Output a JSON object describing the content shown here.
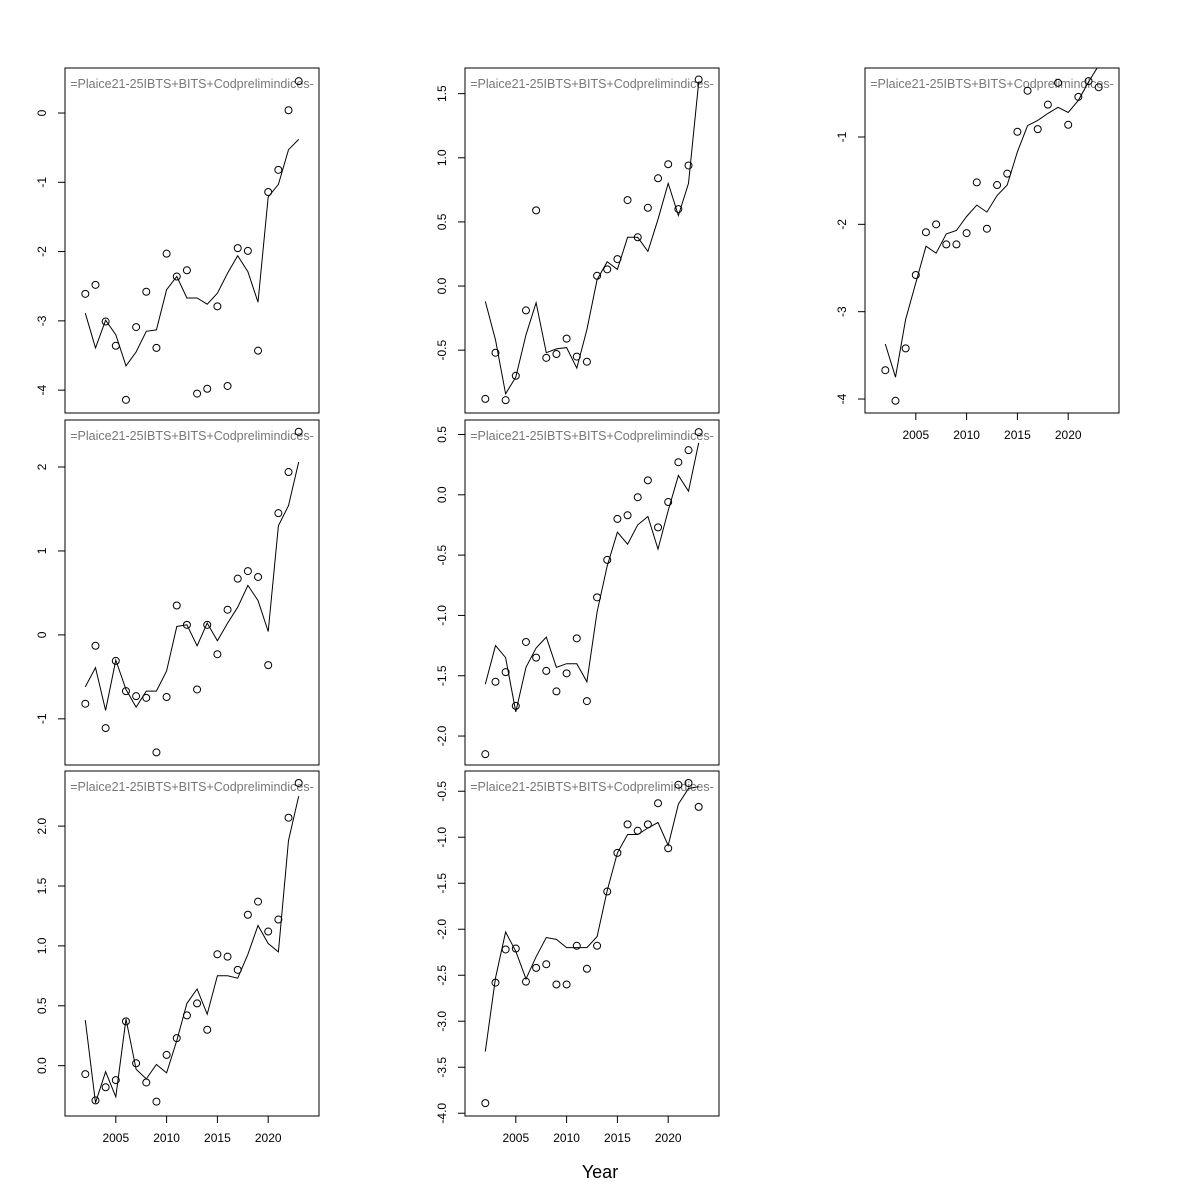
{
  "x_label": "Year",
  "chart_data": [
    {
      "type": "line",
      "title": "=Plaice21-25IBTS+BITS+Codprelimindices-",
      "x": [
        2002,
        2003,
        2004,
        2005,
        2006,
        2007,
        2008,
        2009,
        2010,
        2011,
        2012,
        2013,
        2014,
        2015,
        2016,
        2017,
        2018,
        2019,
        2020,
        2021,
        2022,
        2023
      ],
      "series": [
        {
          "mode": "points",
          "color": "#000000",
          "values": [
            -2.61,
            -2.48,
            -3.01,
            -3.36,
            -4.14,
            -3.09,
            -2.58,
            -3.39,
            -2.03,
            -2.36,
            -2.27,
            -4.05,
            -3.98,
            -2.79,
            -3.94,
            -1.95,
            -1.99,
            -3.43,
            -1.14,
            -0.82,
            0.04,
            0.46
          ]
        },
        {
          "mode": "line",
          "color": "#000000",
          "values": [
            -2.89,
            -3.39,
            -2.99,
            -3.2,
            -3.65,
            -3.45,
            -3.15,
            -3.13,
            -2.55,
            -2.36,
            -2.67,
            -2.67,
            -2.76,
            -2.6,
            -2.31,
            -2.06,
            -2.29,
            -2.73,
            -1.21,
            -1.03,
            -0.53,
            -0.38
          ]
        }
      ],
      "xlim": [
        2000,
        2025
      ],
      "ylim": [
        -4.33,
        0.65
      ],
      "yticks": [
        0,
        -1,
        -2,
        -3,
        -4
      ]
    },
    {
      "type": "line",
      "title": "=Plaice21-25IBTS+BITS+Codprelimindices-",
      "x": [
        2002,
        2003,
        2004,
        2005,
        2006,
        2007,
        2008,
        2009,
        2010,
        2011,
        2012,
        2013,
        2014,
        2015,
        2016,
        2017,
        2018,
        2019,
        2020,
        2021,
        2022,
        2023
      ],
      "series": [
        {
          "mode": "points",
          "color": "#000000",
          "values": [
            -0.82,
            -0.13,
            -1.11,
            -0.31,
            -0.67,
            -0.73,
            -0.75,
            -1.4,
            -0.74,
            0.35,
            0.12,
            -0.65,
            0.12,
            -0.23,
            0.3,
            0.67,
            0.76,
            0.69,
            -0.36,
            1.45,
            1.94,
            2.42
          ]
        },
        {
          "mode": "line",
          "color": "#000000",
          "values": [
            -0.62,
            -0.39,
            -0.9,
            -0.3,
            -0.65,
            -0.86,
            -0.67,
            -0.67,
            -0.43,
            0.1,
            0.12,
            -0.13,
            0.14,
            -0.07,
            0.14,
            0.33,
            0.59,
            0.41,
            0.04,
            1.3,
            1.54,
            2.06
          ]
        }
      ],
      "xlim": [
        2000,
        2025
      ],
      "ylim": [
        -1.55,
        2.56
      ],
      "yticks": [
        2,
        1,
        0,
        -1
      ]
    },
    {
      "type": "line",
      "title": "=Plaice21-25IBTS+BITS+Codprelimindices-",
      "x": [
        2002,
        2003,
        2004,
        2005,
        2006,
        2007,
        2008,
        2009,
        2010,
        2011,
        2012,
        2013,
        2014,
        2015,
        2016,
        2017,
        2018,
        2019,
        2020,
        2021,
        2022,
        2023
      ],
      "series": [
        {
          "mode": "points",
          "color": "#000000",
          "values": [
            -0.07,
            -0.29,
            -0.18,
            -0.12,
            0.37,
            0.02,
            -0.14,
            -0.3,
            0.09,
            0.23,
            0.42,
            0.52,
            0.3,
            0.93,
            0.91,
            0.8,
            1.26,
            1.37,
            1.12,
            1.22,
            2.07,
            2.36
          ]
        },
        {
          "mode": "line",
          "color": "#000000",
          "values": [
            0.38,
            -0.31,
            -0.05,
            -0.26,
            0.39,
            -0.03,
            -0.11,
            0.01,
            -0.06,
            0.21,
            0.52,
            0.64,
            0.43,
            0.75,
            0.75,
            0.73,
            0.93,
            1.17,
            1.02,
            0.95,
            1.88,
            2.25
          ]
        }
      ],
      "xlim": [
        2000,
        2025
      ],
      "ylim": [
        -0.42,
        2.46
      ],
      "yticks": [
        {
          "value": 2,
          "label": "2.0"
        },
        1.5,
        {
          "value": 1,
          "label": "1.0"
        },
        0.5,
        {
          "value": 0,
          "label": "0.0"
        }
      ],
      "xticks": [
        2005,
        2010,
        2015,
        2020
      ]
    },
    {
      "type": "line",
      "title": "=Plaice21-25IBTS+BITS+Codprelimindices-",
      "x": [
        2002,
        2003,
        2004,
        2005,
        2006,
        2007,
        2008,
        2009,
        2010,
        2011,
        2012,
        2013,
        2014,
        2015,
        2016,
        2017,
        2018,
        2019,
        2020,
        2021,
        2022,
        2023
      ],
      "series": [
        {
          "mode": "points",
          "color": "#000000",
          "values": [
            -0.88,
            -0.52,
            -0.89,
            -0.7,
            -0.19,
            0.59,
            -0.56,
            -0.53,
            -0.41,
            -0.55,
            -0.59,
            0.08,
            0.13,
            0.21,
            0.67,
            0.38,
            0.61,
            0.84,
            0.95,
            0.6,
            0.94,
            1.61
          ]
        },
        {
          "mode": "line",
          "color": "#000000",
          "values": [
            -0.12,
            -0.42,
            -0.84,
            -0.71,
            -0.38,
            -0.13,
            -0.52,
            -0.49,
            -0.48,
            -0.64,
            -0.34,
            0.05,
            0.19,
            0.13,
            0.38,
            0.38,
            0.27,
            0.52,
            0.8,
            0.55,
            0.8,
            1.59
          ]
        }
      ],
      "xlim": [
        2000,
        2025
      ],
      "ylim": [
        -0.99,
        1.7
      ],
      "yticks": [
        1.5,
        {
          "value": 1,
          "label": "1.0"
        },
        0.5,
        {
          "value": 0,
          "label": "0.0"
        },
        -0.5
      ]
    },
    {
      "type": "line",
      "title": "=Plaice21-25IBTS+BITS+Codprelimindices-",
      "x": [
        2002,
        2003,
        2004,
        2005,
        2006,
        2007,
        2008,
        2009,
        2010,
        2011,
        2012,
        2013,
        2014,
        2015,
        2016,
        2017,
        2018,
        2019,
        2020,
        2021,
        2022,
        2023
      ],
      "series": [
        {
          "mode": "points",
          "color": "#000000",
          "values": [
            -2.15,
            -1.55,
            -1.47,
            -1.75,
            -1.22,
            -1.35,
            -1.46,
            -1.63,
            -1.48,
            -1.19,
            -1.71,
            -0.85,
            -0.54,
            -0.2,
            -0.17,
            -0.02,
            0.12,
            -0.27,
            -0.06,
            0.27,
            0.37,
            0.52
          ]
        },
        {
          "mode": "line",
          "color": "#000000",
          "values": [
            -1.57,
            -1.25,
            -1.35,
            -1.8,
            -1.43,
            -1.27,
            -1.18,
            -1.43,
            -1.4,
            -1.4,
            -1.55,
            -0.97,
            -0.59,
            -0.31,
            -0.41,
            -0.25,
            -0.18,
            -0.45,
            -0.13,
            0.16,
            0.03,
            0.43
          ]
        }
      ],
      "xlim": [
        2000,
        2025
      ],
      "ylim": [
        -2.24,
        0.62
      ],
      "yticks": [
        0.5,
        {
          "value": 0,
          "label": "0.0"
        },
        -0.5,
        {
          "value": -1,
          "label": "-1.0"
        },
        -1.5,
        {
          "value": -2,
          "label": "-2.0"
        }
      ]
    },
    {
      "type": "line",
      "title": "=Plaice21-25IBTS+BITS+Codprelimindices-",
      "x": [
        2002,
        2003,
        2004,
        2005,
        2006,
        2007,
        2008,
        2009,
        2010,
        2011,
        2012,
        2013,
        2014,
        2015,
        2016,
        2017,
        2018,
        2019,
        2020,
        2021,
        2022,
        2023
      ],
      "series": [
        {
          "mode": "points",
          "color": "#000000",
          "values": [
            -3.89,
            -2.58,
            -2.22,
            -2.21,
            -2.57,
            -2.42,
            -2.38,
            -2.6,
            -2.6,
            -2.18,
            -2.43,
            -2.18,
            -1.59,
            -1.17,
            -0.86,
            -0.93,
            -0.86,
            -0.63,
            -1.12,
            -0.43,
            -0.41,
            -0.67
          ]
        },
        {
          "mode": "line",
          "color": "#000000",
          "values": [
            -3.33,
            -2.53,
            -2.03,
            -2.24,
            -2.54,
            -2.3,
            -2.09,
            -2.11,
            -2.2,
            -2.2,
            -2.2,
            -2.08,
            -1.58,
            -1.17,
            -0.97,
            -0.97,
            -0.9,
            -0.84,
            -1.09,
            -0.64,
            -0.47,
            -0.45
          ]
        }
      ],
      "xlim": [
        2000,
        2025
      ],
      "ylim": [
        -4.03,
        -0.28
      ],
      "yticks": [
        -0.5,
        {
          "value": -1,
          "label": "-1.0"
        },
        -1.5,
        {
          "value": -2,
          "label": "-2.0"
        },
        -2.5,
        {
          "value": -3,
          "label": "-3.0"
        },
        -3.5,
        {
          "value": -4,
          "label": "-4.0"
        }
      ],
      "xticks": [
        2005,
        2010,
        2015,
        2020
      ]
    },
    {
      "type": "line",
      "title": "=Plaice21-25IBTS+BITS+Codprelimindices-",
      "x": [
        2002,
        2003,
        2004,
        2005,
        2006,
        2007,
        2008,
        2009,
        2010,
        2011,
        2012,
        2013,
        2014,
        2015,
        2016,
        2017,
        2018,
        2019,
        2020,
        2021,
        2022,
        2023
      ],
      "series": [
        {
          "mode": "points",
          "color": "#000000",
          "values": [
            -3.67,
            -4.02,
            -3.42,
            -2.58,
            -2.09,
            -2.0,
            -2.23,
            -2.23,
            -2.1,
            -1.52,
            -2.05,
            -1.55,
            -1.42,
            -0.94,
            -0.47,
            -0.91,
            -0.63,
            -0.38,
            -0.86,
            -0.54,
            -0.36,
            -0.43
          ]
        },
        {
          "mode": "line",
          "color": "#000000",
          "values": [
            -3.37,
            -3.75,
            -3.09,
            -2.67,
            -2.25,
            -2.33,
            -2.11,
            -2.07,
            -1.91,
            -1.78,
            -1.86,
            -1.67,
            -1.55,
            -1.17,
            -0.87,
            -0.81,
            -0.73,
            -0.66,
            -0.72,
            -0.58,
            -0.37,
            -0.18
          ]
        }
      ],
      "xlim": [
        2000,
        2025
      ],
      "ylim": [
        -4.16,
        -0.21
      ],
      "yticks": [
        -1,
        -2,
        -3,
        -4
      ],
      "xticks": [
        2005,
        2010,
        2015,
        2020
      ]
    }
  ]
}
